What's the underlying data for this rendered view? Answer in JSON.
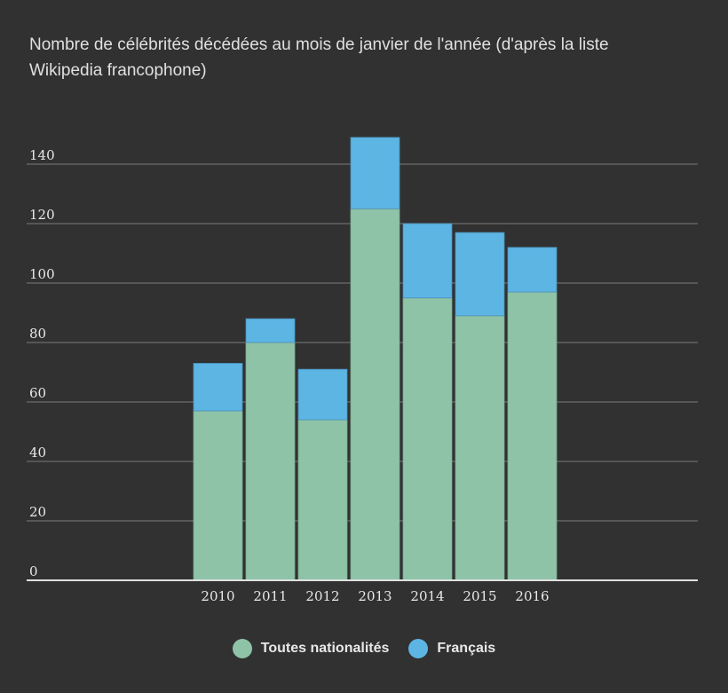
{
  "chart_data": {
    "type": "bar",
    "stacked": true,
    "title": "Nombre de célébrités décédées au mois de janvier de l'année (d'après la liste Wikipedia francophone)",
    "xlabel": "",
    "ylabel": "",
    "categories": [
      "2010",
      "2011",
      "2012",
      "2013",
      "2014",
      "2015",
      "2016"
    ],
    "series": [
      {
        "name": "Toutes nationalités",
        "color": "#8fc3a8",
        "values": [
          57,
          80,
          54,
          125,
          95,
          89,
          97
        ]
      },
      {
        "name": "Français",
        "color": "#5db5e4",
        "values": [
          16,
          8,
          17,
          24,
          25,
          28,
          15
        ]
      }
    ],
    "ylim": [
      0,
      150
    ],
    "yticks": [
      0,
      20,
      40,
      60,
      80,
      100,
      120,
      140
    ],
    "grid": true,
    "legend": "bottom"
  }
}
